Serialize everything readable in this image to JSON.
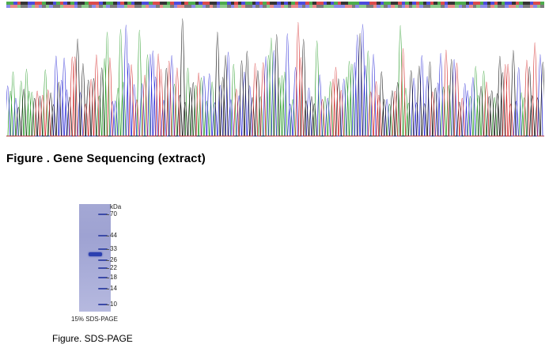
{
  "sequencing": {
    "title": "Figure . Gene Sequencing (extract)",
    "base_colors": {
      "A": "#2e9e2e",
      "C": "#2b2bd6",
      "G": "#111111",
      "T": "#d42b2b"
    },
    "bases": "AACTGGCCTTAGGCATCGACGGATTTCGAAGCTGACGGCCATTGGATCCGTAAGCTTGGCAACGTGCAAGCTATGGCGCGATCCTAGTTCGCATGGAAACCCTTGCAAGGTCAGCTAGCTGATCGGAAAGCTTACGCTGACCGTAGGCTTACGGTCAGGCATCGACT"
  },
  "gel": {
    "unit": "kDa",
    "markers": [
      {
        "label": "70",
        "kda": 70
      },
      {
        "label": "44",
        "kda": 44
      },
      {
        "label": "33",
        "kda": 33
      },
      {
        "label": "26",
        "kda": 26
      },
      {
        "label": "22",
        "kda": 22
      },
      {
        "label": "18",
        "kda": 18
      },
      {
        "label": "14",
        "kda": 14
      },
      {
        "label": "10",
        "kda": 10
      }
    ],
    "caption": "15% SDS-PAGE",
    "figure_title": "Figure. SDS-PAGE"
  }
}
